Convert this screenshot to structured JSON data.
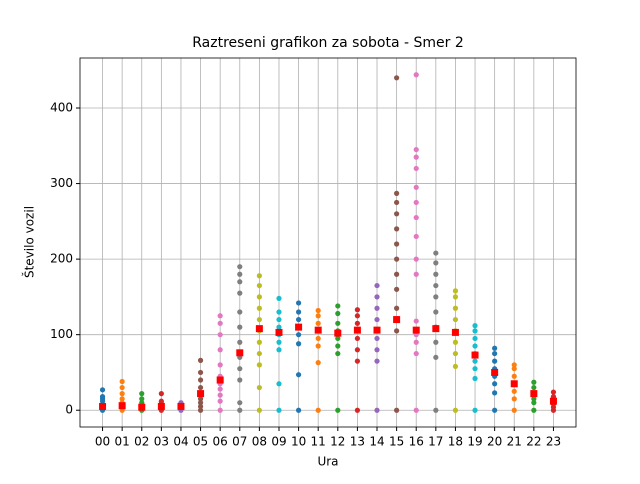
{
  "chart_data": {
    "type": "strip",
    "title": "Raztreseni grafikon za sobota - Smer 2",
    "xlabel": "Ura",
    "ylabel": "Število vozil",
    "categories": [
      "00",
      "01",
      "02",
      "03",
      "04",
      "05",
      "06",
      "07",
      "08",
      "09",
      "10",
      "11",
      "12",
      "13",
      "14",
      "15",
      "16",
      "17",
      "18",
      "19",
      "20",
      "21",
      "22",
      "23"
    ],
    "groups": [
      {
        "color": "#1f77b4",
        "values": [
          0,
          2,
          5,
          8,
          12,
          15,
          18,
          27
        ]
      },
      {
        "color": "#ff7f0e",
        "values": [
          0,
          3,
          6,
          10,
          15,
          22,
          30,
          38
        ]
      },
      {
        "color": "#2ca02c",
        "values": [
          0,
          2,
          4,
          6,
          10,
          15,
          22
        ]
      },
      {
        "color": "#d62728",
        "values": [
          0,
          2,
          4,
          6,
          9,
          12,
          22
        ]
      },
      {
        "color": "#9467bd",
        "values": [
          0,
          2,
          4,
          6,
          8,
          10
        ]
      },
      {
        "color": "#8c564b",
        "values": [
          0,
          5,
          10,
          15,
          22,
          30,
          40,
          50,
          66
        ]
      },
      {
        "color": "#e377c2",
        "values": [
          0,
          12,
          20,
          28,
          35,
          45,
          60,
          80,
          100,
          115,
          125
        ]
      },
      {
        "color": "#7f7f7f",
        "values": [
          0,
          10,
          40,
          55,
          70,
          90,
          110,
          130,
          155,
          170,
          180,
          190
        ]
      },
      {
        "color": "#bcbd22",
        "values": [
          0,
          30,
          60,
          75,
          90,
          105,
          120,
          135,
          150,
          165,
          178
        ]
      },
      {
        "color": "#17becf",
        "values": [
          0,
          35,
          80,
          90,
          100,
          110,
          120,
          130,
          148
        ]
      },
      {
        "color": "#1f77b4",
        "values": [
          0,
          47,
          88,
          100,
          110,
          120,
          130,
          142
        ]
      },
      {
        "color": "#ff7f0e",
        "values": [
          0,
          63,
          85,
          95,
          105,
          115,
          125,
          132
        ]
      },
      {
        "color": "#2ca02c",
        "values": [
          0,
          75,
          85,
          95,
          105,
          115,
          128,
          138
        ]
      },
      {
        "color": "#d62728",
        "values": [
          0,
          65,
          80,
          95,
          105,
          115,
          125,
          133
        ]
      },
      {
        "color": "#9467bd",
        "values": [
          0,
          65,
          80,
          95,
          105,
          120,
          135,
          150,
          165
        ]
      },
      {
        "color": "#8c564b",
        "values": [
          0,
          105,
          120,
          135,
          160,
          180,
          200,
          220,
          240,
          260,
          275,
          287,
          440
        ]
      },
      {
        "color": "#e377c2",
        "values": [
          0,
          75,
          90,
          100,
          118,
          180,
          200,
          230,
          255,
          275,
          295,
          320,
          335,
          345,
          444
        ]
      },
      {
        "color": "#7f7f7f",
        "values": [
          0,
          70,
          90,
          110,
          130,
          150,
          165,
          180,
          195,
          208
        ]
      },
      {
        "color": "#bcbd22",
        "values": [
          0,
          58,
          75,
          90,
          105,
          120,
          135,
          150,
          158
        ]
      },
      {
        "color": "#17becf",
        "values": [
          0,
          42,
          55,
          65,
          75,
          85,
          95,
          105,
          112
        ]
      },
      {
        "color": "#1f77b4",
        "values": [
          0,
          23,
          35,
          45,
          55,
          65,
          75,
          82
        ]
      },
      {
        "color": "#ff7f0e",
        "values": [
          0,
          15,
          25,
          35,
          45,
          55,
          60
        ]
      },
      {
        "color": "#2ca02c",
        "values": [
          0,
          10,
          15,
          22,
          30,
          37
        ]
      },
      {
        "color": "#d62728",
        "values": [
          0,
          4,
          8,
          12,
          18,
          24
        ]
      }
    ],
    "means": {
      "color": "#ff0000",
      "values": [
        5,
        6,
        4,
        5,
        5,
        22,
        40,
        76,
        108,
        103,
        110,
        106,
        102,
        106,
        106,
        120,
        106,
        108,
        103,
        73,
        50,
        35,
        22,
        12
      ]
    },
    "xlim": [
      -1.15,
      24.15
    ],
    "ylim": [
      -22.2,
      466.2
    ],
    "yticks": [
      0,
      100,
      200,
      300,
      400
    ],
    "grid": true
  }
}
